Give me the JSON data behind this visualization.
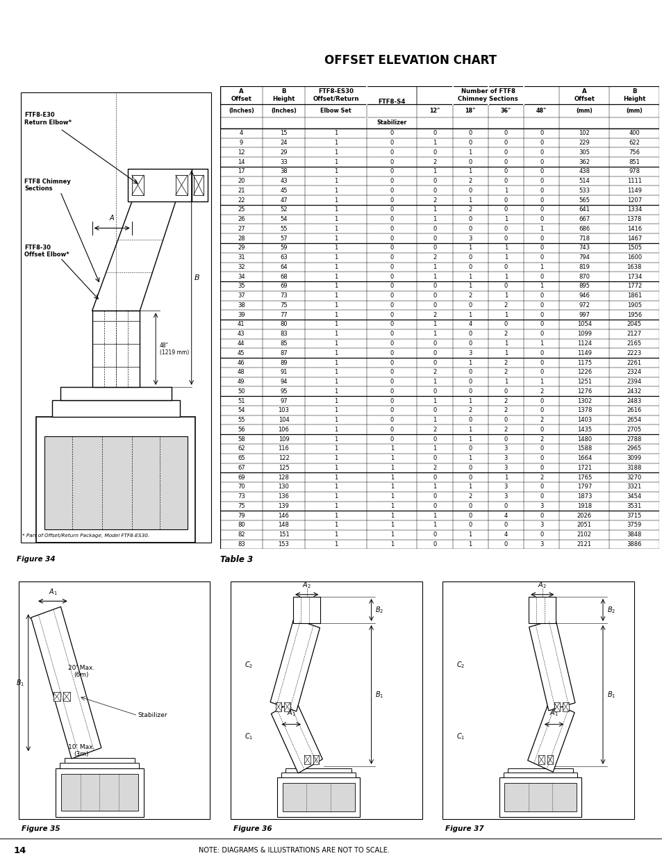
{
  "title": "OFFSET ELEVATION CHART",
  "table_caption": "Table 3",
  "table_data": [
    [
      4,
      15,
      1,
      0,
      0,
      0,
      0,
      0,
      102,
      400
    ],
    [
      9,
      24,
      1,
      0,
      1,
      0,
      0,
      0,
      229,
      622
    ],
    [
      12,
      29,
      1,
      0,
      0,
      1,
      0,
      0,
      305,
      756
    ],
    [
      14,
      33,
      1,
      0,
      2,
      0,
      0,
      0,
      362,
      851
    ],
    [
      17,
      38,
      1,
      0,
      1,
      1,
      0,
      0,
      438,
      978
    ],
    [
      20,
      43,
      1,
      0,
      0,
      2,
      0,
      0,
      514,
      1111
    ],
    [
      21,
      45,
      1,
      0,
      0,
      0,
      1,
      0,
      533,
      1149
    ],
    [
      22,
      47,
      1,
      0,
      2,
      1,
      0,
      0,
      565,
      1207
    ],
    [
      25,
      52,
      1,
      0,
      1,
      2,
      0,
      0,
      641,
      1334
    ],
    [
      26,
      54,
      1,
      0,
      1,
      0,
      1,
      0,
      667,
      1378
    ],
    [
      27,
      55,
      1,
      0,
      0,
      0,
      0,
      1,
      686,
      1416
    ],
    [
      28,
      57,
      1,
      0,
      0,
      3,
      0,
      0,
      718,
      1467
    ],
    [
      29,
      59,
      1,
      0,
      0,
      1,
      1,
      0,
      743,
      1505
    ],
    [
      31,
      63,
      1,
      0,
      2,
      0,
      1,
      0,
      794,
      1600
    ],
    [
      32,
      64,
      1,
      0,
      1,
      0,
      0,
      1,
      819,
      1638
    ],
    [
      34,
      68,
      1,
      0,
      1,
      1,
      1,
      0,
      870,
      1734
    ],
    [
      35,
      69,
      1,
      0,
      0,
      1,
      0,
      1,
      895,
      1772
    ],
    [
      37,
      73,
      1,
      0,
      0,
      2,
      1,
      0,
      946,
      1861
    ],
    [
      38,
      75,
      1,
      0,
      0,
      0,
      2,
      0,
      972,
      1905
    ],
    [
      39,
      77,
      1,
      0,
      2,
      1,
      1,
      0,
      997,
      1956
    ],
    [
      41,
      80,
      1,
      0,
      1,
      4,
      0,
      0,
      1054,
      2045
    ],
    [
      43,
      83,
      1,
      0,
      1,
      0,
      2,
      0,
      1099,
      2127
    ],
    [
      44,
      85,
      1,
      0,
      0,
      0,
      1,
      1,
      1124,
      2165
    ],
    [
      45,
      87,
      1,
      0,
      0,
      3,
      1,
      0,
      1149,
      2223
    ],
    [
      46,
      89,
      1,
      0,
      0,
      1,
      2,
      0,
      1175,
      2261
    ],
    [
      48,
      91,
      1,
      0,
      2,
      0,
      2,
      0,
      1226,
      2324
    ],
    [
      49,
      94,
      1,
      0,
      1,
      0,
      1,
      1,
      1251,
      2394
    ],
    [
      50,
      95,
      1,
      0,
      0,
      0,
      0,
      2,
      1276,
      2432
    ],
    [
      51,
      97,
      1,
      0,
      1,
      1,
      2,
      0,
      1302,
      2483
    ],
    [
      54,
      103,
      1,
      0,
      0,
      2,
      2,
      0,
      1378,
      2616
    ],
    [
      55,
      104,
      1,
      0,
      1,
      0,
      0,
      2,
      1403,
      2654
    ],
    [
      56,
      106,
      1,
      0,
      2,
      1,
      2,
      0,
      1435,
      2705
    ],
    [
      58,
      109,
      1,
      0,
      0,
      1,
      0,
      2,
      1480,
      2788
    ],
    [
      62,
      116,
      1,
      1,
      1,
      0,
      3,
      0,
      1588,
      2965
    ],
    [
      65,
      122,
      1,
      1,
      0,
      1,
      3,
      0,
      1664,
      3099
    ],
    [
      67,
      125,
      1,
      1,
      2,
      0,
      3,
      0,
      1721,
      3188
    ],
    [
      69,
      128,
      1,
      1,
      0,
      0,
      1,
      2,
      1765,
      3270
    ],
    [
      70,
      130,
      1,
      1,
      1,
      1,
      3,
      0,
      1797,
      3321
    ],
    [
      73,
      136,
      1,
      1,
      0,
      2,
      3,
      0,
      1873,
      3454
    ],
    [
      75,
      139,
      1,
      1,
      0,
      0,
      0,
      3,
      1918,
      3531
    ],
    [
      79,
      146,
      1,
      1,
      1,
      0,
      4,
      0,
      2026,
      3715
    ],
    [
      80,
      148,
      1,
      1,
      1,
      0,
      0,
      3,
      2051,
      3759
    ],
    [
      82,
      151,
      1,
      1,
      0,
      1,
      4,
      0,
      2102,
      3848
    ],
    [
      83,
      153,
      1,
      1,
      0,
      1,
      0,
      3,
      2121,
      3886
    ]
  ],
  "group_breaks": [
    4,
    8,
    12,
    16,
    20,
    24,
    28,
    32,
    36,
    40
  ],
  "footer_note": "NOTE: DIAGRAMS & ILLUSTRATIONS ARE NOT TO SCALE.",
  "page_number": "14"
}
